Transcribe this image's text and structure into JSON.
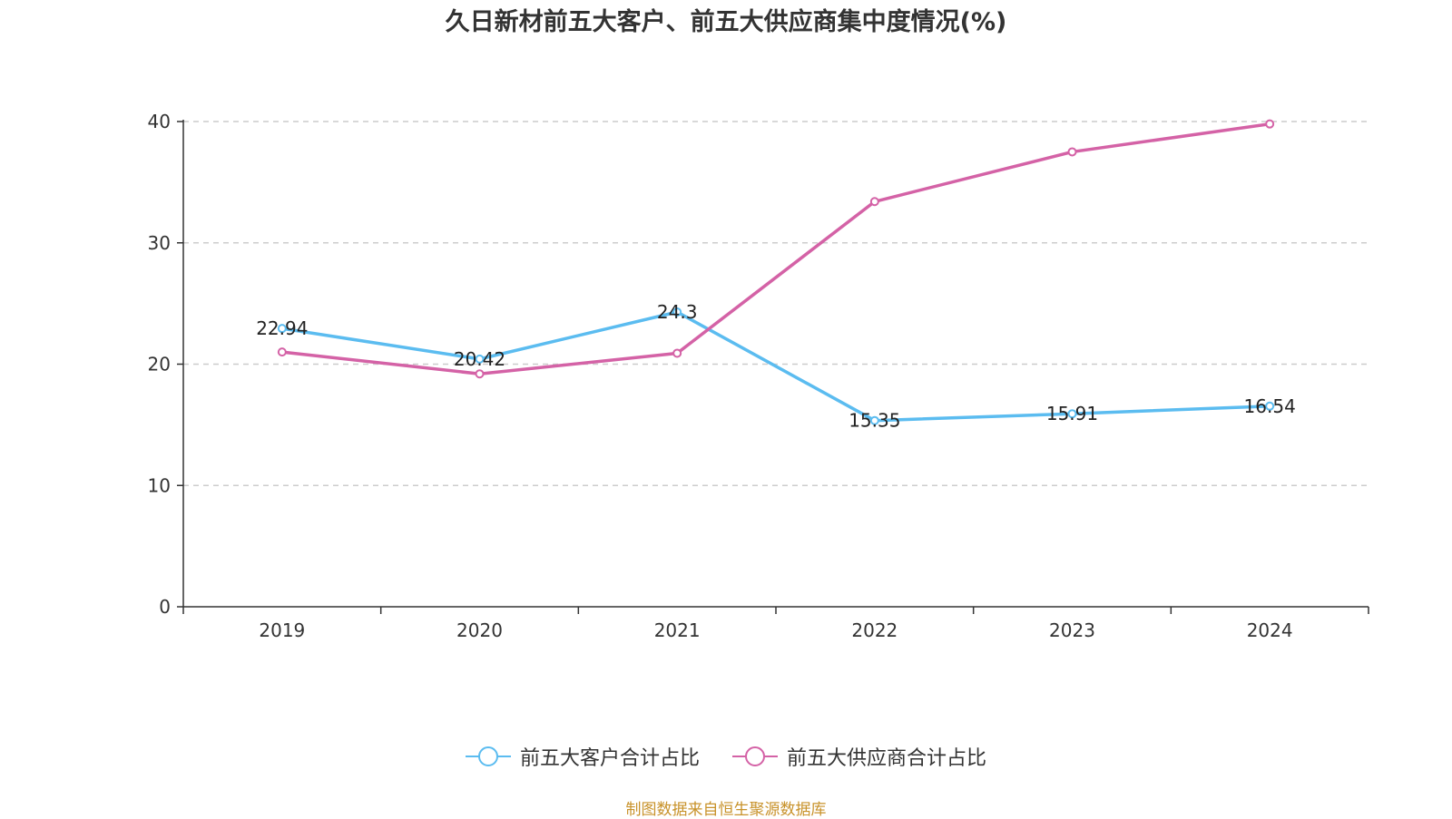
{
  "chart_data": {
    "type": "line",
    "title": "久日新材前五大客户、前五大供应商集中度情况(%)",
    "categories": [
      "2019",
      "2020",
      "2021",
      "2022",
      "2023",
      "2024"
    ],
    "ylim": [
      0,
      40
    ],
    "yticks": [
      0,
      10,
      20,
      30,
      40
    ],
    "grid": true,
    "legend_position": "bottom",
    "series": [
      {
        "name": "前五大客户合计占比",
        "color": "#5bbcf0",
        "values": [
          22.94,
          20.42,
          24.3,
          15.35,
          15.91,
          16.54
        ],
        "labels": [
          "22.94",
          "20.42",
          "24.3",
          "15.35",
          "15.91",
          "16.54"
        ]
      },
      {
        "name": "前五大供应商合计占比",
        "color": "#d462a6",
        "values": [
          21.0,
          19.2,
          20.9,
          33.4,
          37.5,
          39.8
        ],
        "labels": []
      }
    ]
  },
  "source": "制图数据来自恒生聚源数据库"
}
